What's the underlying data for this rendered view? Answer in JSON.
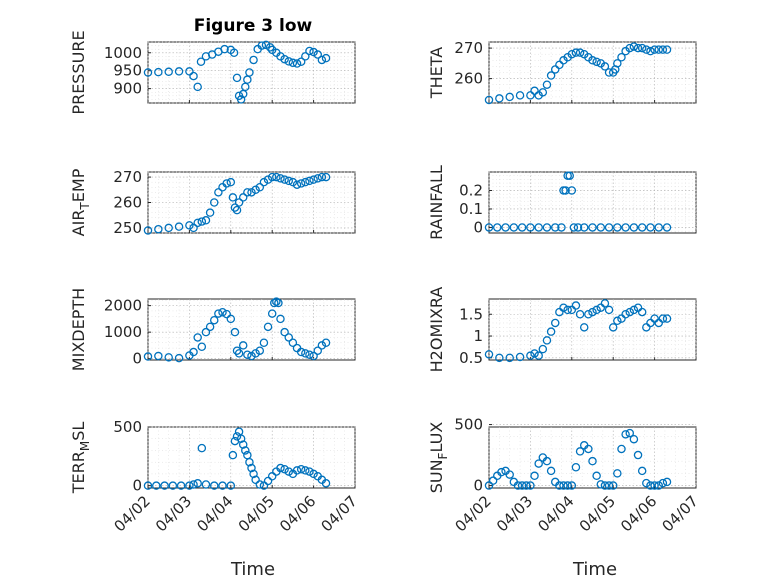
{
  "figure": {
    "title": "Figure 3 low",
    "xlabel": "Time",
    "x_ticklabels": [
      "04/02",
      "04/03",
      "04/04",
      "04/05",
      "04/06",
      "04/07"
    ],
    "marker_color": "#0072BD"
  },
  "chart_data": [
    {
      "type": "scatter",
      "ylabel": "PRESSURE",
      "xlim": [
        0,
        5
      ],
      "ylim": [
        860,
        1030
      ],
      "yticks": [
        900,
        950,
        1000
      ],
      "yticklabels": [
        "900",
        "950",
        "1000"
      ],
      "x": [
        0.0,
        0.25,
        0.5,
        0.75,
        1.0,
        1.1,
        1.2,
        1.28,
        1.4,
        1.55,
        1.7,
        1.85,
        2.0,
        2.08,
        2.15,
        2.2,
        2.25,
        2.3,
        2.35,
        2.4,
        2.45,
        2.55,
        2.65,
        2.75,
        2.85,
        2.95,
        3.0,
        3.1,
        3.2,
        3.3,
        3.4,
        3.5,
        3.6,
        3.7,
        3.8,
        3.9,
        4.0,
        4.1,
        4.2,
        4.3
      ],
      "y": [
        945,
        946,
        947,
        948,
        948,
        935,
        905,
        975,
        990,
        995,
        1003,
        1010,
        1008,
        1000,
        930,
        880,
        870,
        885,
        905,
        925,
        945,
        980,
        1010,
        1020,
        1022,
        1015,
        1008,
        1000,
        990,
        982,
        976,
        972,
        970,
        975,
        990,
        1005,
        1002,
        995,
        980,
        985
      ]
    },
    {
      "type": "scatter",
      "ylabel": "THETA",
      "xlim": [
        0,
        5
      ],
      "ylim": [
        252,
        272
      ],
      "yticks": [
        260,
        270
      ],
      "yticklabels": [
        "260",
        "270"
      ],
      "x": [
        0.0,
        0.25,
        0.5,
        0.75,
        1.0,
        1.1,
        1.2,
        1.3,
        1.4,
        1.5,
        1.6,
        1.7,
        1.8,
        1.9,
        2.0,
        2.1,
        2.2,
        2.3,
        2.4,
        2.5,
        2.6,
        2.7,
        2.8,
        2.9,
        3.0,
        3.05,
        3.1,
        3.2,
        3.3,
        3.4,
        3.5,
        3.6,
        3.7,
        3.8,
        3.9,
        4.0,
        4.1,
        4.2,
        4.3
      ],
      "y": [
        253,
        253.5,
        254,
        254.5,
        254.5,
        256,
        254.5,
        255.5,
        258,
        261,
        263,
        264.5,
        266,
        267,
        268,
        268.5,
        268.5,
        268,
        267,
        266,
        265.5,
        265,
        264,
        262,
        262,
        263,
        265,
        267,
        269,
        270,
        270.5,
        270,
        270,
        269.5,
        269,
        269.5,
        269.5,
        269.5,
        269.5
      ]
    },
    {
      "type": "scatter",
      "ylabel": "AIR_TEMP",
      "ylabel_base": "AIR",
      "ylabel_sub": "T",
      "ylabel_rest": "EMP",
      "xlim": [
        0,
        5
      ],
      "ylim": [
        248,
        272
      ],
      "yticks": [
        250,
        260,
        270
      ],
      "yticklabels": [
        "250",
        "260",
        "270"
      ],
      "x": [
        0.0,
        0.25,
        0.5,
        0.75,
        1.0,
        1.1,
        1.2,
        1.3,
        1.4,
        1.5,
        1.6,
        1.7,
        1.8,
        1.9,
        2.0,
        2.05,
        2.1,
        2.15,
        2.2,
        2.3,
        2.4,
        2.5,
        2.6,
        2.7,
        2.8,
        2.9,
        3.0,
        3.1,
        3.2,
        3.3,
        3.4,
        3.5,
        3.6,
        3.7,
        3.8,
        3.9,
        4.0,
        4.1,
        4.2,
        4.3
      ],
      "y": [
        249,
        249.5,
        250,
        250.5,
        251,
        250,
        252,
        252.5,
        253,
        256,
        260,
        264,
        266,
        267.5,
        268,
        262,
        258,
        257,
        260,
        262,
        264,
        264,
        265,
        266,
        268,
        269,
        270,
        270,
        269.5,
        269,
        268.5,
        268,
        267,
        267.5,
        268,
        268.5,
        269,
        269.5,
        270,
        270
      ]
    },
    {
      "type": "scatter",
      "ylabel": "RAINFALL",
      "xlim": [
        0,
        5
      ],
      "ylim": [
        -0.03,
        0.3
      ],
      "yticks": [
        0,
        0.1,
        0.2
      ],
      "yticklabels": [
        "0",
        "0.1",
        "0.2"
      ],
      "x": [
        0.0,
        0.2,
        0.4,
        0.6,
        0.8,
        1.0,
        1.2,
        1.4,
        1.6,
        1.75,
        1.8,
        1.85,
        1.9,
        1.95,
        2.0,
        2.05,
        2.15,
        2.3,
        2.5,
        2.7,
        2.9,
        3.1,
        3.3,
        3.5,
        3.7,
        3.9,
        4.1,
        4.3
      ],
      "y": [
        0,
        0,
        0,
        0,
        0,
        0,
        0,
        0,
        0,
        0,
        0.2,
        0.2,
        0.28,
        0.28,
        0.2,
        0,
        0,
        0,
        0,
        0,
        0,
        0,
        0,
        0,
        0,
        0,
        0,
        0
      ]
    },
    {
      "type": "scatter",
      "ylabel": "MIXDEPTH",
      "xlim": [
        0,
        5
      ],
      "ylim": [
        -50,
        2250
      ],
      "yticks": [
        0,
        1000,
        2000
      ],
      "yticklabels": [
        "0",
        "1000",
        "2000"
      ],
      "x": [
        0.0,
        0.25,
        0.5,
        0.75,
        1.0,
        1.1,
        1.2,
        1.3,
        1.4,
        1.5,
        1.6,
        1.7,
        1.8,
        1.9,
        2.0,
        2.1,
        2.15,
        2.2,
        2.3,
        2.4,
        2.5,
        2.6,
        2.7,
        2.8,
        2.9,
        3.0,
        3.05,
        3.1,
        3.15,
        3.2,
        3.3,
        3.4,
        3.5,
        3.6,
        3.7,
        3.8,
        3.9,
        4.0,
        4.1,
        4.2,
        4.3
      ],
      "y": [
        80,
        100,
        50,
        20,
        120,
        250,
        800,
        450,
        1000,
        1200,
        1450,
        1700,
        1750,
        1680,
        1500,
        1000,
        300,
        200,
        500,
        150,
        100,
        200,
        300,
        600,
        1200,
        1700,
        2100,
        2150,
        2100,
        1500,
        1000,
        800,
        600,
        400,
        250,
        200,
        150,
        100,
        300,
        500,
        600
      ]
    },
    {
      "type": "scatter",
      "ylabel": "H2OMIXRA",
      "xlim": [
        0,
        5
      ],
      "ylim": [
        0.45,
        1.85
      ],
      "yticks": [
        0.5,
        1,
        1.5
      ],
      "yticklabels": [
        "0.5",
        "1",
        "1.5"
      ],
      "x": [
        0.0,
        0.25,
        0.5,
        0.75,
        1.0,
        1.1,
        1.2,
        1.3,
        1.4,
        1.5,
        1.6,
        1.7,
        1.8,
        1.9,
        2.0,
        2.1,
        2.2,
        2.3,
        2.4,
        2.5,
        2.6,
        2.7,
        2.8,
        2.9,
        3.0,
        3.1,
        3.2,
        3.3,
        3.4,
        3.5,
        3.6,
        3.7,
        3.8,
        3.9,
        4.0,
        4.1,
        4.2,
        4.3
      ],
      "y": [
        0.58,
        0.5,
        0.5,
        0.52,
        0.55,
        0.6,
        0.55,
        0.7,
        0.9,
        1.1,
        1.3,
        1.55,
        1.65,
        1.6,
        1.6,
        1.7,
        1.5,
        1.2,
        1.5,
        1.55,
        1.6,
        1.65,
        1.75,
        1.6,
        1.2,
        1.35,
        1.4,
        1.5,
        1.55,
        1.6,
        1.65,
        1.55,
        1.2,
        1.3,
        1.4,
        1.3,
        1.4,
        1.4
      ]
    },
    {
      "type": "scatter",
      "ylabel": "TERR_MSL",
      "ylabel_base": "TERR",
      "ylabel_sub": "M",
      "ylabel_rest": "SL",
      "xlim": [
        0,
        5
      ],
      "ylim": [
        -20,
        500
      ],
      "yticks": [
        0,
        500
      ],
      "yticklabels": [
        "0",
        "500"
      ],
      "x": [
        0.0,
        0.2,
        0.4,
        0.6,
        0.8,
        1.0,
        1.1,
        1.2,
        1.3,
        1.4,
        1.6,
        1.8,
        2.0,
        2.05,
        2.1,
        2.15,
        2.2,
        2.25,
        2.3,
        2.35,
        2.4,
        2.45,
        2.5,
        2.55,
        2.6,
        2.7,
        2.8,
        2.9,
        3.0,
        3.1,
        3.2,
        3.3,
        3.4,
        3.5,
        3.6,
        3.7,
        3.8,
        3.9,
        4.0,
        4.1,
        4.2,
        4.3
      ],
      "y": [
        0,
        0,
        0,
        0,
        0,
        0,
        10,
        20,
        320,
        10,
        0,
        0,
        0,
        260,
        380,
        420,
        460,
        400,
        350,
        300,
        260,
        200,
        150,
        100,
        50,
        10,
        0,
        40,
        80,
        120,
        150,
        140,
        120,
        100,
        130,
        140,
        130,
        120,
        100,
        80,
        50,
        20
      ]
    },
    {
      "type": "scatter",
      "ylabel": "SUN_FLUX",
      "ylabel_base": "SUN",
      "ylabel_sub": "F",
      "ylabel_rest": "LUX",
      "xlim": [
        0,
        5
      ],
      "ylim": [
        -20,
        480
      ],
      "yticks": [
        0,
        500
      ],
      "yticklabels": [
        "0",
        "500"
      ],
      "x": [
        0.0,
        0.1,
        0.2,
        0.3,
        0.4,
        0.5,
        0.6,
        0.7,
        0.8,
        0.9,
        1.0,
        1.1,
        1.2,
        1.3,
        1.4,
        1.5,
        1.6,
        1.7,
        1.8,
        1.9,
        2.0,
        2.1,
        2.2,
        2.3,
        2.4,
        2.5,
        2.6,
        2.7,
        2.8,
        2.9,
        3.0,
        3.1,
        3.2,
        3.3,
        3.4,
        3.5,
        3.6,
        3.7,
        3.8,
        3.9,
        4.0,
        4.1,
        4.2,
        4.3
      ],
      "y": [
        0,
        40,
        80,
        110,
        120,
        90,
        30,
        0,
        0,
        0,
        0,
        80,
        180,
        230,
        200,
        120,
        30,
        0,
        0,
        0,
        0,
        150,
        280,
        330,
        300,
        200,
        80,
        10,
        0,
        0,
        0,
        100,
        300,
        420,
        430,
        380,
        250,
        120,
        20,
        0,
        0,
        0,
        20,
        30
      ]
    }
  ]
}
